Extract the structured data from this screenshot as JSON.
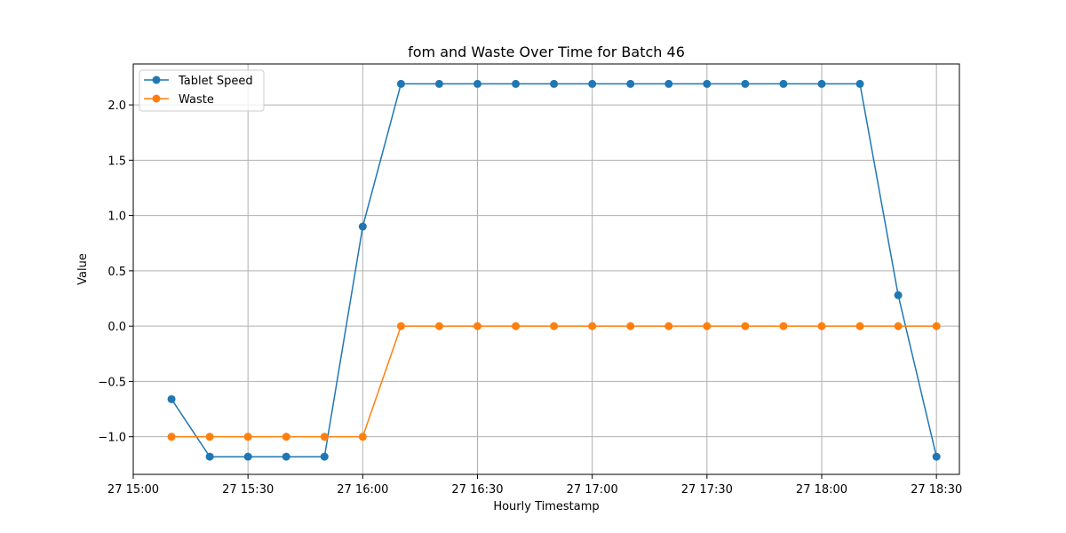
{
  "chart_data": {
    "type": "line",
    "title": "fom and Waste Over Time for Batch 46",
    "xlabel": "Hourly Timestamp",
    "ylabel": "Value",
    "x": [
      "27 15:10",
      "27 15:20",
      "27 15:30",
      "27 15:40",
      "27 15:50",
      "27 16:00",
      "27 16:10",
      "27 16:20",
      "27 16:30",
      "27 16:40",
      "27 16:50",
      "27 17:00",
      "27 17:10",
      "27 17:20",
      "27 17:30",
      "27 17:40",
      "27 17:50",
      "27 18:00",
      "27 18:10",
      "27 18:20",
      "27 18:30"
    ],
    "xlim": [
      "27 15:00",
      "27 18:36"
    ],
    "ylim": [
      -1.34,
      2.37
    ],
    "x_ticks": [
      "27 15:00",
      "27 15:30",
      "27 16:00",
      "27 16:30",
      "27 17:00",
      "27 17:30",
      "27 18:00",
      "27 18:30"
    ],
    "y_ticks": [
      "−1.0",
      "−0.5",
      "0.0",
      "0.5",
      "1.0",
      "1.5",
      "2.0"
    ],
    "grid": true,
    "legend_position": "upper-left",
    "series": [
      {
        "name": "Tablet Speed",
        "color": "#1f77b4",
        "values": [
          -0.66,
          -1.18,
          -1.18,
          -1.18,
          -1.18,
          0.9,
          2.19,
          2.19,
          2.19,
          2.19,
          2.19,
          2.19,
          2.19,
          2.19,
          2.19,
          2.19,
          2.19,
          2.19,
          2.19,
          0.28,
          -1.18
        ]
      },
      {
        "name": "Waste",
        "color": "#ff7f0e",
        "values": [
          -1.0,
          -1.0,
          -1.0,
          -1.0,
          -1.0,
          -1.0,
          0.0,
          0.0,
          0.0,
          0.0,
          0.0,
          0.0,
          0.0,
          0.0,
          0.0,
          0.0,
          0.0,
          0.0,
          0.0,
          0.0,
          0.0
        ]
      }
    ]
  }
}
